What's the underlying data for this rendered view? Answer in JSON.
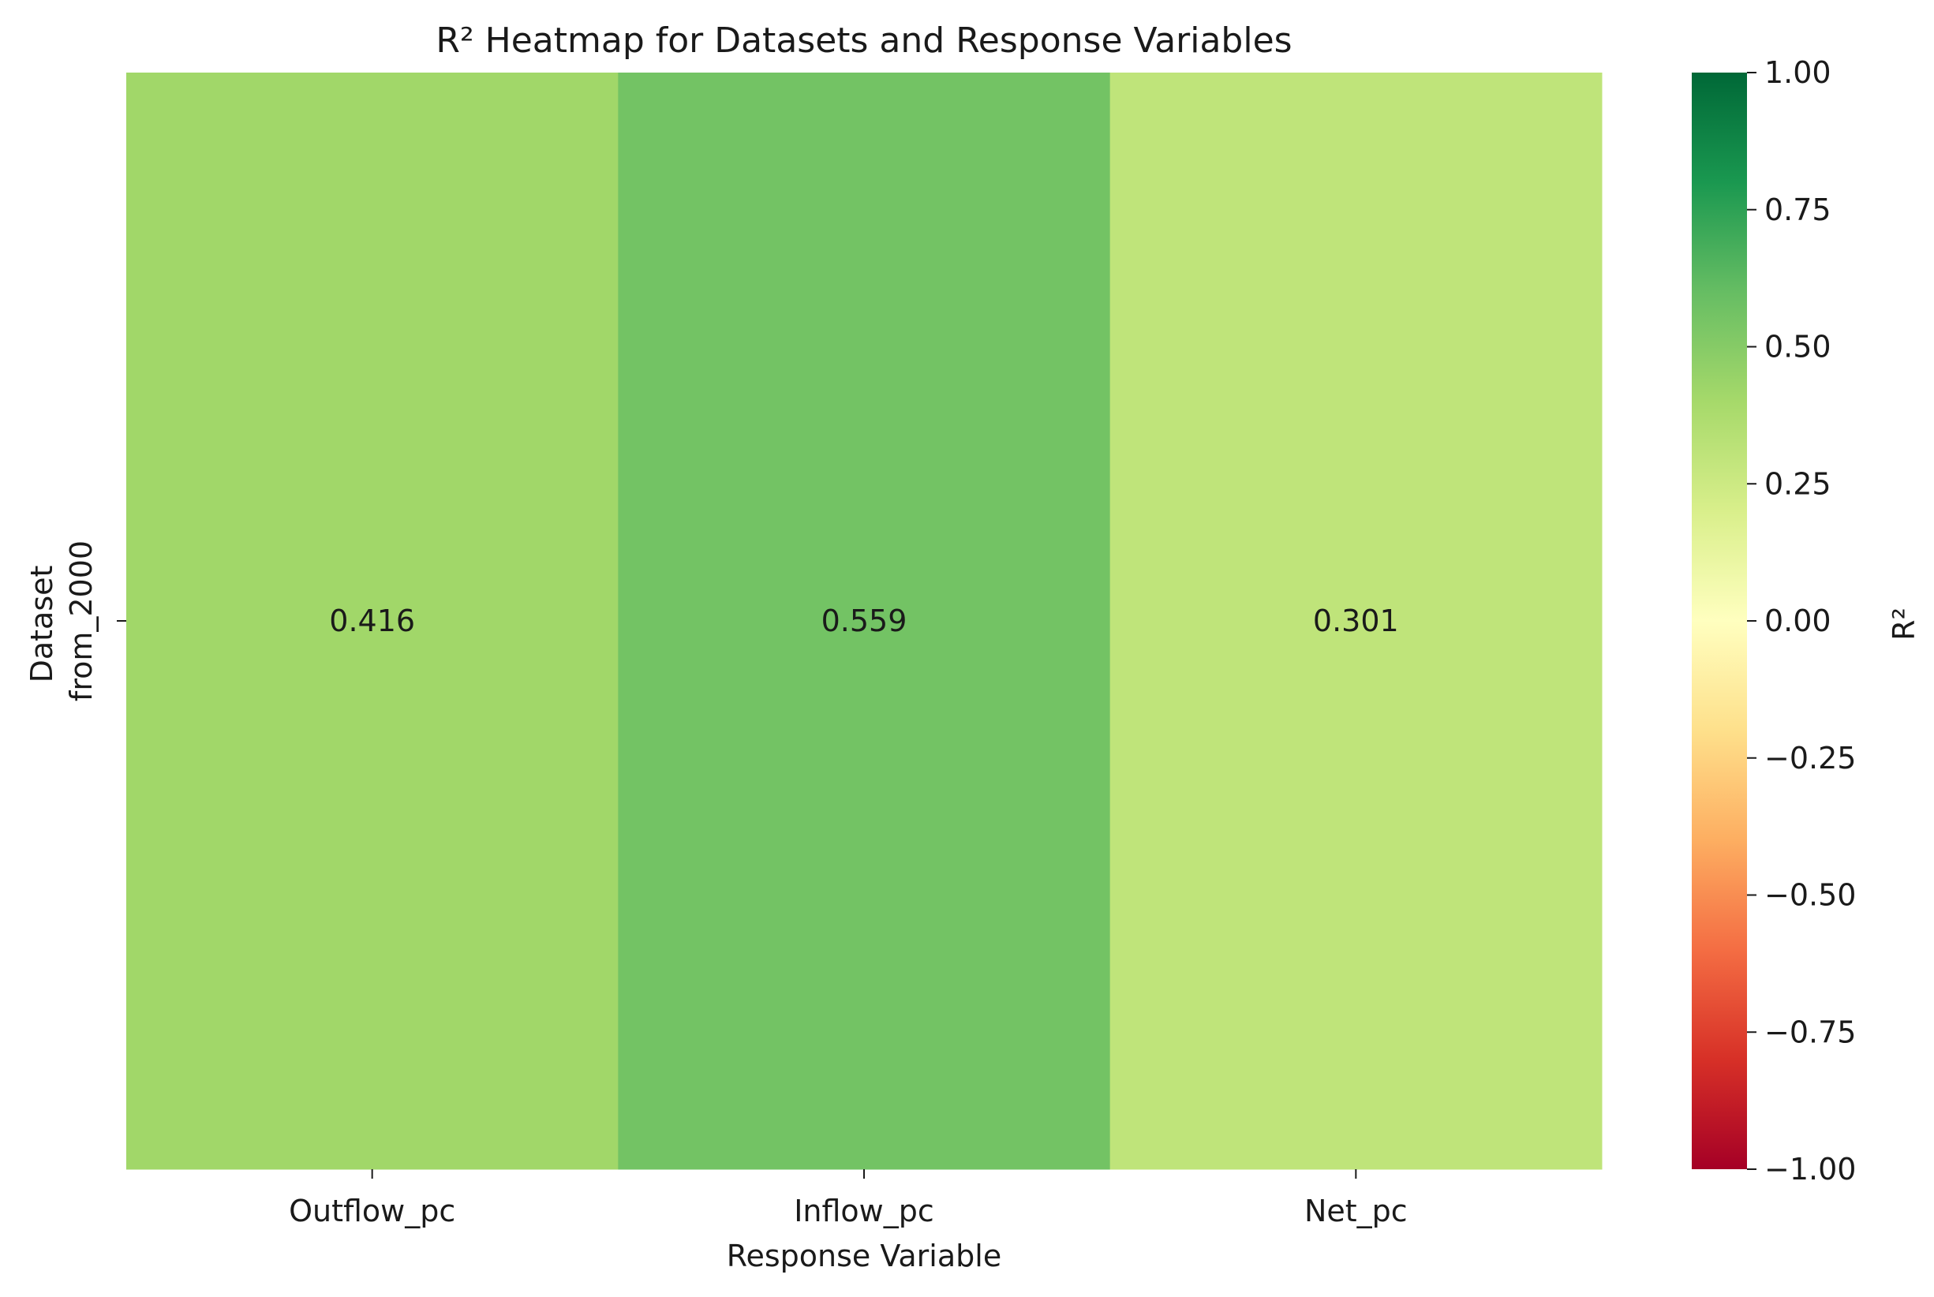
{
  "chart_data": {
    "type": "heatmap",
    "title": "R² Heatmap for Datasets and Response Variables",
    "xlabel": "Response Variable",
    "ylabel": "Dataset",
    "x_categories": [
      "Outflow_pc",
      "Inflow_pc",
      "Net_pc"
    ],
    "y_categories": [
      "from_2000"
    ],
    "values": [
      [
        0.416,
        0.559,
        0.301
      ]
    ],
    "value_format": "3 decimals",
    "colorbar": {
      "label": "R²",
      "colormap": "RdYlGn",
      "vmin": -1.0,
      "vmax": 1.0,
      "ticks": [
        -1.0,
        -0.75,
        -0.5,
        -0.25,
        0.0,
        0.25,
        0.5,
        0.75,
        1.0
      ],
      "tick_labels": [
        "−1.00",
        "−0.75",
        "−0.50",
        "−0.25",
        "0.00",
        "0.25",
        "0.50",
        "0.75",
        "1.00"
      ]
    },
    "colors": {
      "scale": [
        "#a50026",
        "#d73027",
        "#f46d43",
        "#fdae61",
        "#fee08b",
        "#ffffbf",
        "#d9ef8b",
        "#a6d96a",
        "#66bd63",
        "#1a9850",
        "#006837"
      ]
    }
  }
}
